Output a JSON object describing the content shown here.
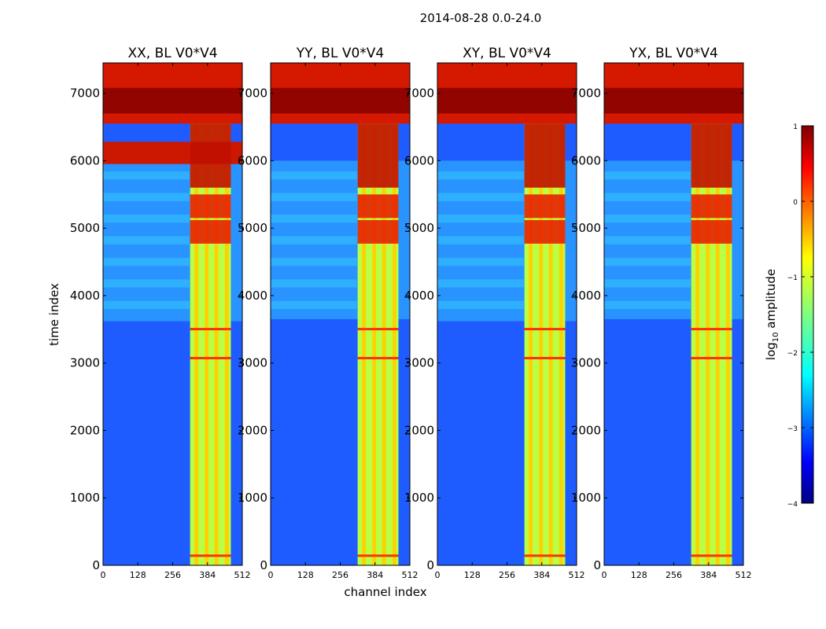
{
  "figure": {
    "suptitle": "2014-08-28 0.0-24.0",
    "xlabel": "channel index",
    "ylabel": "time index"
  },
  "chart_data": {
    "type": "heatmap",
    "colormap": "jet",
    "xlim": [
      0,
      512
    ],
    "ylim": [
      0,
      7450
    ],
    "xticks": [
      0,
      128,
      256,
      384,
      512
    ],
    "xtick_labels": [
      "0",
      "128",
      "256",
      "384",
      "512"
    ],
    "yticks": [
      0,
      1000,
      2000,
      3000,
      4000,
      5000,
      6000,
      7000
    ],
    "ytick_labels": [
      "0",
      "1000",
      "2000",
      "3000",
      "4000",
      "5000",
      "6000",
      "7000"
    ],
    "panels": [
      {
        "title": "XX, BL V0*V4",
        "pol": "XX"
      },
      {
        "title": "YY, BL V0*V4",
        "pol": "YY"
      },
      {
        "title": "XY, BL V0*V4",
        "pol": "XY"
      },
      {
        "title": "YX, BL V0*V4",
        "pol": "YX"
      }
    ],
    "colorbar": {
      "label_main": "log",
      "label_sub": "10",
      "label_end": " amplitude",
      "range": [
        -4,
        1
      ],
      "ticks": [
        1,
        0,
        -1,
        -2,
        -3,
        -4
      ],
      "tick_labels": [
        "1",
        "0",
        "−1",
        "−2",
        "−3",
        "−4"
      ],
      "colors": [
        "#00007f",
        "#0000ff",
        "#007fff",
        "#00ffff",
        "#7fff7f",
        "#ffff00",
        "#ff7f00",
        "#ff0000",
        "#7f0000"
      ]
    }
  }
}
